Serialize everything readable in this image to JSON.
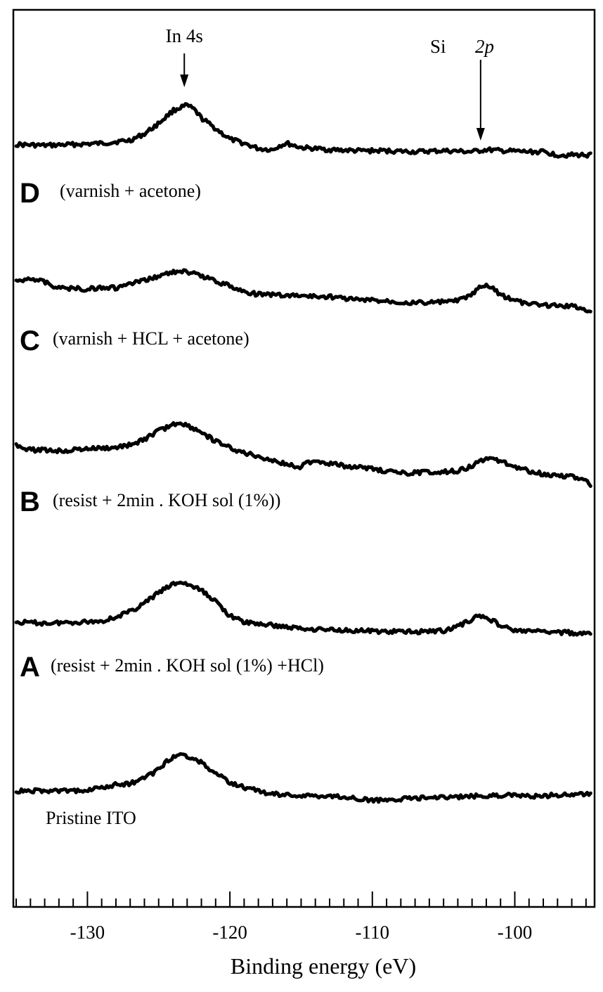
{
  "chart_data": {
    "type": "line",
    "xlabel": "Binding energy (eV)",
    "xlim": [
      -135.2,
      -94.4
    ],
    "x_ticks": [
      -130,
      -120,
      -110,
      -100
    ],
    "x_tick_labels": [
      "-130",
      "-120",
      "-110",
      "-100"
    ],
    "minor_tick_step": 1,
    "grid": false,
    "annotations": [
      {
        "label": "In 4s",
        "x": -123.2
      },
      {
        "label_main": "Si",
        "label_italic": "2p",
        "x": -102.4
      }
    ],
    "series": [
      {
        "letter": "D",
        "name": "(varnish +  acetone)",
        "points": [
          [
            -135,
            0.05
          ],
          [
            -133,
            0.04
          ],
          [
            -131,
            0.05
          ],
          [
            -129,
            0.06
          ],
          [
            -127,
            0.09
          ],
          [
            -126,
            0.15
          ],
          [
            -125,
            0.25
          ],
          [
            -124,
            0.37
          ],
          [
            -123.5,
            0.4
          ],
          [
            -123,
            0.42
          ],
          [
            -122.5,
            0.38
          ],
          [
            -122,
            0.3
          ],
          [
            -121,
            0.2
          ],
          [
            -120,
            0.1
          ],
          [
            -119,
            0.06
          ],
          [
            -118,
            0.01
          ],
          [
            -117,
            0.0
          ],
          [
            -116.5,
            0.04
          ],
          [
            -116,
            0.06
          ],
          [
            -115.5,
            0.04
          ],
          [
            -115,
            0.02
          ],
          [
            -113,
            0.0
          ],
          [
            -111,
            -0.01
          ],
          [
            -109,
            -0.01
          ],
          [
            -107,
            -0.02
          ],
          [
            -105,
            -0.01
          ],
          [
            -103,
            -0.02
          ],
          [
            -102,
            0.0
          ],
          [
            -101,
            -0.01
          ],
          [
            -99,
            -0.02
          ],
          [
            -98,
            -0.02
          ],
          [
            -97,
            -0.05
          ],
          [
            -95,
            -0.05
          ],
          [
            -94.6,
            -0.05
          ]
        ]
      },
      {
        "letter": "C",
        "name": "(varnish + HCL + acetone)",
        "points": [
          [
            -135,
            0.06
          ],
          [
            -134,
            0.1
          ],
          [
            -133,
            0.06
          ],
          [
            -132,
            0.0
          ],
          [
            -131,
            0.0
          ],
          [
            -130,
            -0.01
          ],
          [
            -129,
            0.01
          ],
          [
            -128,
            0.0
          ],
          [
            -127,
            0.04
          ],
          [
            -126,
            0.07
          ],
          [
            -125,
            0.12
          ],
          [
            -124,
            0.15
          ],
          [
            -123.5,
            0.17
          ],
          [
            -123,
            0.15
          ],
          [
            -122,
            0.12
          ],
          [
            -121,
            0.07
          ],
          [
            -120,
            0.02
          ],
          [
            -119,
            -0.03
          ],
          [
            -118,
            -0.06
          ],
          [
            -117,
            -0.06
          ],
          [
            -116,
            -0.07
          ],
          [
            -115,
            -0.07
          ],
          [
            -114,
            -0.08
          ],
          [
            -113,
            -0.08
          ],
          [
            -111,
            -0.11
          ],
          [
            -109,
            -0.12
          ],
          [
            -107,
            -0.14
          ],
          [
            -105,
            -0.13
          ],
          [
            -104,
            -0.12
          ],
          [
            -103,
            -0.06
          ],
          [
            -102.5,
            0.0
          ],
          [
            -102,
            0.02
          ],
          [
            -101.5,
            0.0
          ],
          [
            -101,
            -0.06
          ],
          [
            -100,
            -0.12
          ],
          [
            -99,
            -0.15
          ],
          [
            -98,
            -0.16
          ],
          [
            -96,
            -0.17
          ],
          [
            -95,
            -0.2
          ],
          [
            -94.6,
            -0.21
          ]
        ]
      },
      {
        "letter": "B",
        "name": "(resist + 2min . KOH sol (1%))",
        "points": [
          [
            -135,
            0.05
          ],
          [
            -134,
            0.0
          ],
          [
            -133,
            0.0
          ],
          [
            -132,
            -0.01
          ],
          [
            -130,
            0.01
          ],
          [
            -128,
            0.02
          ],
          [
            -127,
            0.05
          ],
          [
            -126,
            0.1
          ],
          [
            -125,
            0.18
          ],
          [
            -124,
            0.24
          ],
          [
            -123.5,
            0.26
          ],
          [
            -123,
            0.23
          ],
          [
            -122,
            0.17
          ],
          [
            -121,
            0.08
          ],
          [
            -120,
            0.02
          ],
          [
            -119,
            -0.03
          ],
          [
            -118,
            -0.06
          ],
          [
            -117,
            -0.1
          ],
          [
            -116,
            -0.14
          ],
          [
            -115,
            -0.16
          ],
          [
            -114.5,
            -0.12
          ],
          [
            -114,
            -0.1
          ],
          [
            -113,
            -0.13
          ],
          [
            -112,
            -0.15
          ],
          [
            -110,
            -0.18
          ],
          [
            -108,
            -0.22
          ],
          [
            -106,
            -0.21
          ],
          [
            -104,
            -0.2
          ],
          [
            -103,
            -0.15
          ],
          [
            -102,
            -0.08
          ],
          [
            -101,
            -0.1
          ],
          [
            -100,
            -0.16
          ],
          [
            -99,
            -0.2
          ],
          [
            -98,
            -0.23
          ],
          [
            -96,
            -0.25
          ],
          [
            -95,
            -0.3
          ],
          [
            -94.6,
            -0.35
          ]
        ]
      },
      {
        "letter": "A",
        "name": "(resist + 2min . KOH sol (1%) +HCl)",
        "points": [
          [
            -135,
            0.0
          ],
          [
            -133,
            -0.01
          ],
          [
            -131,
            0.0
          ],
          [
            -129,
            0.01
          ],
          [
            -128,
            0.05
          ],
          [
            -127,
            0.1
          ],
          [
            -126,
            0.18
          ],
          [
            -125,
            0.28
          ],
          [
            -124,
            0.36
          ],
          [
            -123.5,
            0.38
          ],
          [
            -123,
            0.36
          ],
          [
            -122,
            0.3
          ],
          [
            -121,
            0.2
          ],
          [
            -120,
            0.06
          ],
          [
            -119,
            0.0
          ],
          [
            -117,
            -0.03
          ],
          [
            -115,
            -0.06
          ],
          [
            -113,
            -0.07
          ],
          [
            -111,
            -0.08
          ],
          [
            -109,
            -0.09
          ],
          [
            -107,
            -0.09
          ],
          [
            -105,
            -0.08
          ],
          [
            -104,
            -0.04
          ],
          [
            -103,
            0.03
          ],
          [
            -102.5,
            0.06
          ],
          [
            -102,
            0.05
          ],
          [
            -101,
            -0.03
          ],
          [
            -100,
            -0.08
          ],
          [
            -98,
            -0.09
          ],
          [
            -96,
            -0.1
          ],
          [
            -94.6,
            -0.12
          ]
        ]
      },
      {
        "letter": "",
        "name": "Pristine ITO",
        "points": [
          [
            -135,
            0.0
          ],
          [
            -133,
            0.0
          ],
          [
            -131,
            0.0
          ],
          [
            -129,
            0.03
          ],
          [
            -128,
            0.06
          ],
          [
            -127,
            0.07
          ],
          [
            -126,
            0.12
          ],
          [
            -125,
            0.2
          ],
          [
            -124.5,
            0.27
          ],
          [
            -124,
            0.32
          ],
          [
            -123.5,
            0.35
          ],
          [
            -123,
            0.33
          ],
          [
            -122,
            0.27
          ],
          [
            -121,
            0.17
          ],
          [
            -120,
            0.08
          ],
          [
            -119,
            0.03
          ],
          [
            -118,
            0.0
          ],
          [
            -117,
            -0.03
          ],
          [
            -115,
            -0.05
          ],
          [
            -113,
            -0.05
          ],
          [
            -111,
            -0.07
          ],
          [
            -110,
            -0.09
          ],
          [
            -109,
            -0.08
          ],
          [
            -107,
            -0.07
          ],
          [
            -105,
            -0.06
          ],
          [
            -103,
            -0.05
          ],
          [
            -101,
            -0.04
          ],
          [
            -99,
            -0.05
          ],
          [
            -97,
            -0.04
          ],
          [
            -95,
            -0.03
          ],
          [
            -94.6,
            -0.04
          ]
        ]
      }
    ]
  }
}
